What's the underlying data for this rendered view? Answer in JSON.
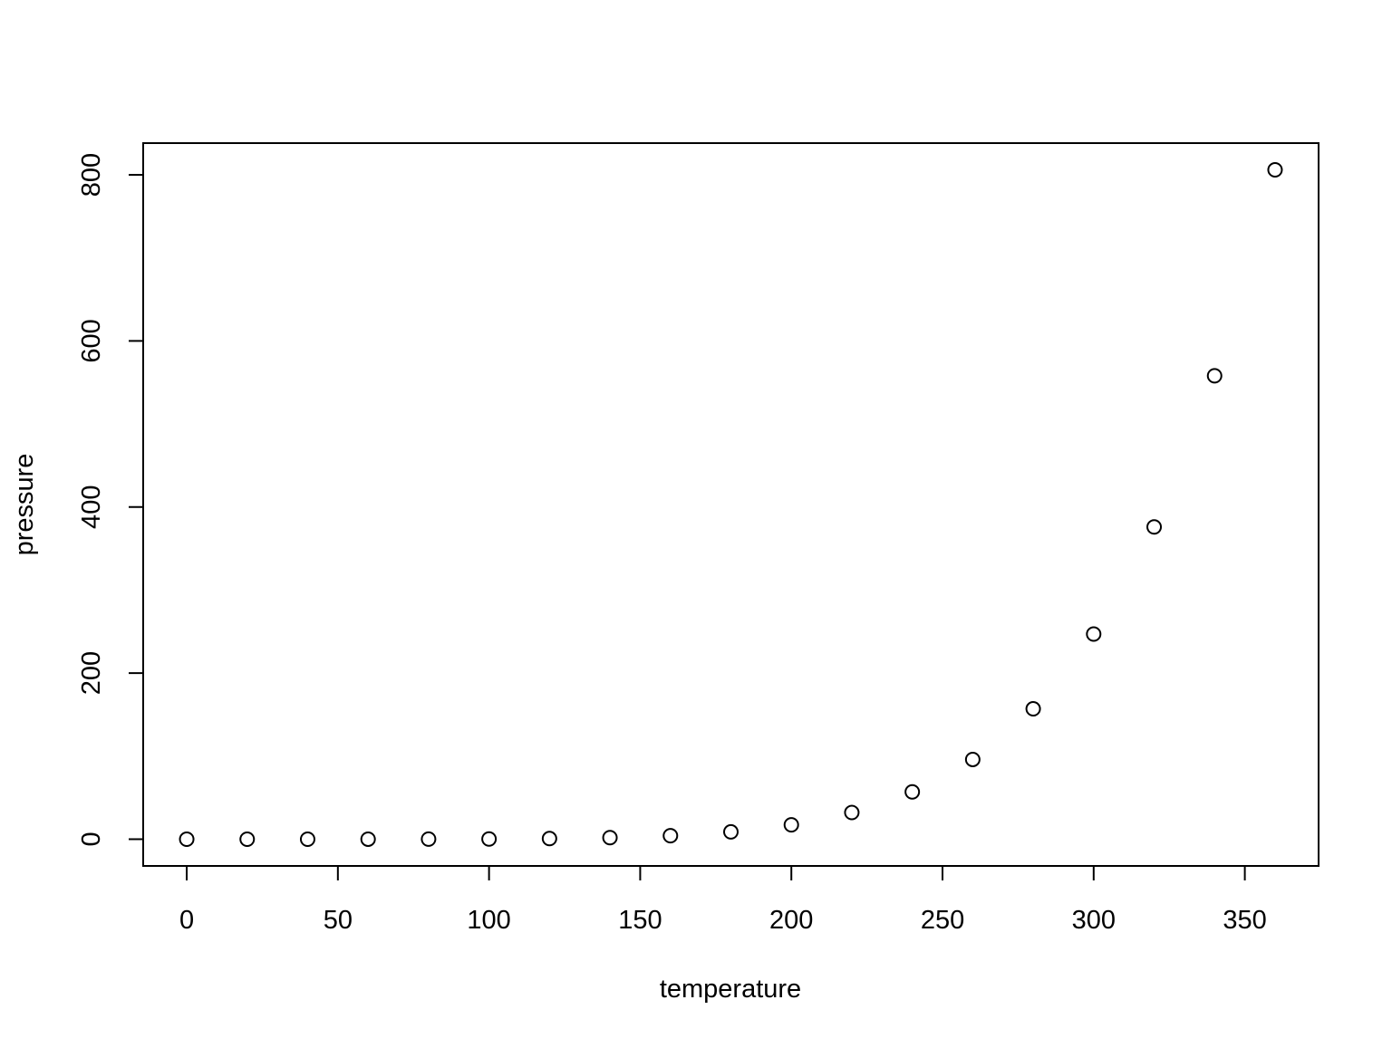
{
  "chart_data": {
    "type": "scatter",
    "title": "",
    "xlabel": "temperature",
    "ylabel": "pressure",
    "xlim": [
      -14.4,
      374.4
    ],
    "ylim": [
      -32.2,
      838.2
    ],
    "x_ticks": [
      0,
      50,
      100,
      150,
      200,
      250,
      300,
      350
    ],
    "y_ticks": [
      0,
      200,
      400,
      600,
      800
    ],
    "x_tick_labels": [
      "0",
      "50",
      "100",
      "150",
      "200",
      "250",
      "300",
      "350"
    ],
    "y_tick_labels": [
      "0",
      "200",
      "400",
      "600",
      "800"
    ],
    "grid": false,
    "marker": "open-circle",
    "colors": {
      "stroke": "#000000",
      "background": "#ffffff"
    },
    "series": [
      {
        "x": [
          0,
          20,
          40,
          60,
          80,
          100,
          120,
          140,
          160,
          180,
          200,
          220,
          240,
          260,
          280,
          300,
          320,
          340,
          360
        ],
        "y": [
          0.0002,
          0.0012,
          0.006,
          0.03,
          0.09,
          0.27,
          0.75,
          1.85,
          4.2,
          8.8,
          17.3,
          32.1,
          57,
          96,
          157,
          247,
          376,
          558,
          806
        ]
      }
    ]
  }
}
